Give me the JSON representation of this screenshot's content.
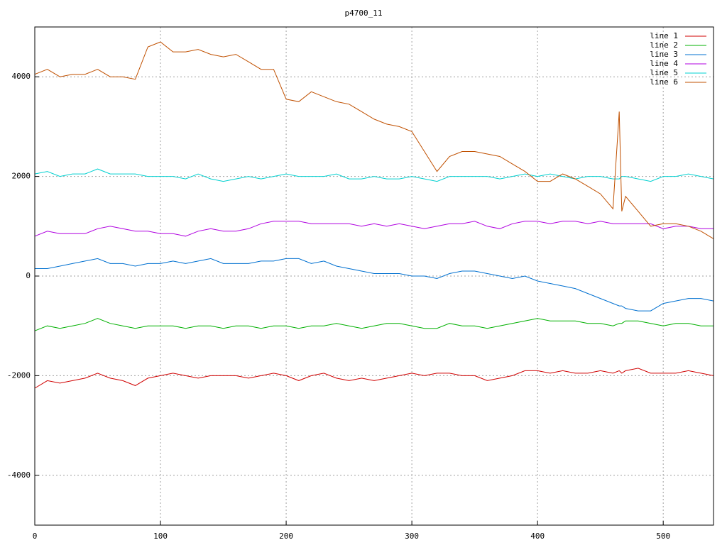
{
  "chart_data": {
    "type": "line",
    "title": "p4700_11",
    "x": [
      0,
      10,
      20,
      30,
      40,
      50,
      60,
      70,
      80,
      90,
      100,
      110,
      120,
      130,
      140,
      150,
      160,
      170,
      180,
      190,
      200,
      210,
      220,
      230,
      240,
      250,
      260,
      270,
      280,
      290,
      300,
      310,
      320,
      330,
      340,
      350,
      360,
      370,
      380,
      390,
      400,
      410,
      420,
      430,
      440,
      450,
      460,
      465,
      467,
      470,
      480,
      490,
      500,
      510,
      520,
      530,
      540
    ],
    "xlim": [
      0,
      540
    ],
    "xticks": [
      0,
      100,
      200,
      300,
      400,
      500
    ],
    "ylim": [
      -5000,
      5000
    ],
    "yticks": [
      -4000,
      -2000,
      0,
      2000,
      4000
    ],
    "grid": true,
    "legend": "top-right",
    "series": [
      {
        "name": "line 1",
        "color": "#d00000",
        "values": [
          -2250,
          -2100,
          -2150,
          -2100,
          -2050,
          -1950,
          -2050,
          -2100,
          -2200,
          -2050,
          -2000,
          -1950,
          -2000,
          -2050,
          -2000,
          -2000,
          -2000,
          -2050,
          -2000,
          -1950,
          -2000,
          -2100,
          -2000,
          -1950,
          -2050,
          -2100,
          -2050,
          -2100,
          -2050,
          -2000,
          -1950,
          -2000,
          -1950,
          -1950,
          -2000,
          -2000,
          -2100,
          -2050,
          -2000,
          -1900,
          -1900,
          -1950,
          -1900,
          -1950,
          -1950,
          -1900,
          -1950,
          -1900,
          -1950,
          -1900,
          -1850,
          -1950,
          -1950,
          -1950,
          -1900,
          -1950,
          -2000
        ]
      },
      {
        "name": "line 2",
        "color": "#00b000",
        "values": [
          -1100,
          -1000,
          -1050,
          -1000,
          -950,
          -850,
          -950,
          -1000,
          -1050,
          -1000,
          -1000,
          -1000,
          -1050,
          -1000,
          -1000,
          -1050,
          -1000,
          -1000,
          -1050,
          -1000,
          -1000,
          -1050,
          -1000,
          -1000,
          -950,
          -1000,
          -1050,
          -1000,
          -950,
          -950,
          -1000,
          -1050,
          -1050,
          -950,
          -1000,
          -1000,
          -1050,
          -1000,
          -950,
          -900,
          -850,
          -900,
          -900,
          -900,
          -950,
          -950,
          -1000,
          -950,
          -950,
          -900,
          -900,
          -950,
          -1000,
          -950,
          -950,
          -1000,
          -1000
        ]
      },
      {
        "name": "line 3",
        "color": "#0070d0",
        "values": [
          150,
          150,
          200,
          250,
          300,
          350,
          250,
          250,
          200,
          250,
          250,
          300,
          250,
          300,
          350,
          250,
          250,
          250,
          300,
          300,
          350,
          350,
          250,
          300,
          200,
          150,
          100,
          50,
          50,
          50,
          0,
          0,
          -50,
          50,
          100,
          100,
          50,
          0,
          -50,
          0,
          -100,
          -150,
          -200,
          -250,
          -350,
          -450,
          -550,
          -600,
          -600,
          -650,
          -700,
          -700,
          -550,
          -500,
          -450,
          -450,
          -500
        ]
      },
      {
        "name": "line 4",
        "color": "#b000e0",
        "values": [
          800,
          900,
          850,
          850,
          850,
          950,
          1000,
          950,
          900,
          900,
          850,
          850,
          800,
          900,
          950,
          900,
          900,
          950,
          1050,
          1100,
          1100,
          1100,
          1050,
          1050,
          1050,
          1050,
          1000,
          1050,
          1000,
          1050,
          1000,
          950,
          1000,
          1050,
          1050,
          1100,
          1000,
          950,
          1050,
          1100,
          1100,
          1050,
          1100,
          1100,
          1050,
          1100,
          1050,
          1050,
          1050,
          1050,
          1050,
          1050,
          950,
          1000,
          1000,
          950,
          950
        ]
      },
      {
        "name": "line 5",
        "color": "#00d0d0",
        "values": [
          2050,
          2100,
          2000,
          2050,
          2050,
          2150,
          2050,
          2050,
          2050,
          2000,
          2000,
          2000,
          1950,
          2050,
          1950,
          1900,
          1950,
          2000,
          1950,
          2000,
          2050,
          2000,
          2000,
          2000,
          2050,
          1950,
          1950,
          2000,
          1950,
          1950,
          2000,
          1950,
          1900,
          2000,
          2000,
          2000,
          2000,
          1950,
          2000,
          2050,
          2000,
          2050,
          2000,
          1950,
          2000,
          2000,
          1950,
          1950,
          2000,
          2000,
          1950,
          1900,
          2000,
          2000,
          2050,
          2000,
          1950
        ]
      },
      {
        "name": "line 6",
        "color": "#c05000",
        "values": [
          4050,
          4150,
          4000,
          4050,
          4050,
          4150,
          4000,
          4000,
          3950,
          4600,
          4700,
          4500,
          4500,
          4550,
          4450,
          4400,
          4450,
          4300,
          4150,
          4150,
          3550,
          3500,
          3700,
          3600,
          3500,
          3450,
          3300,
          3150,
          3050,
          3000,
          2900,
          2500,
          2100,
          2400,
          2500,
          2500,
          2450,
          2400,
          2250,
          2100,
          1900,
          1900,
          2050,
          1950,
          1800,
          1650,
          1350,
          3300,
          1300,
          1600,
          1300,
          1000,
          1050,
          1050,
          1000,
          900,
          750
        ]
      }
    ]
  }
}
